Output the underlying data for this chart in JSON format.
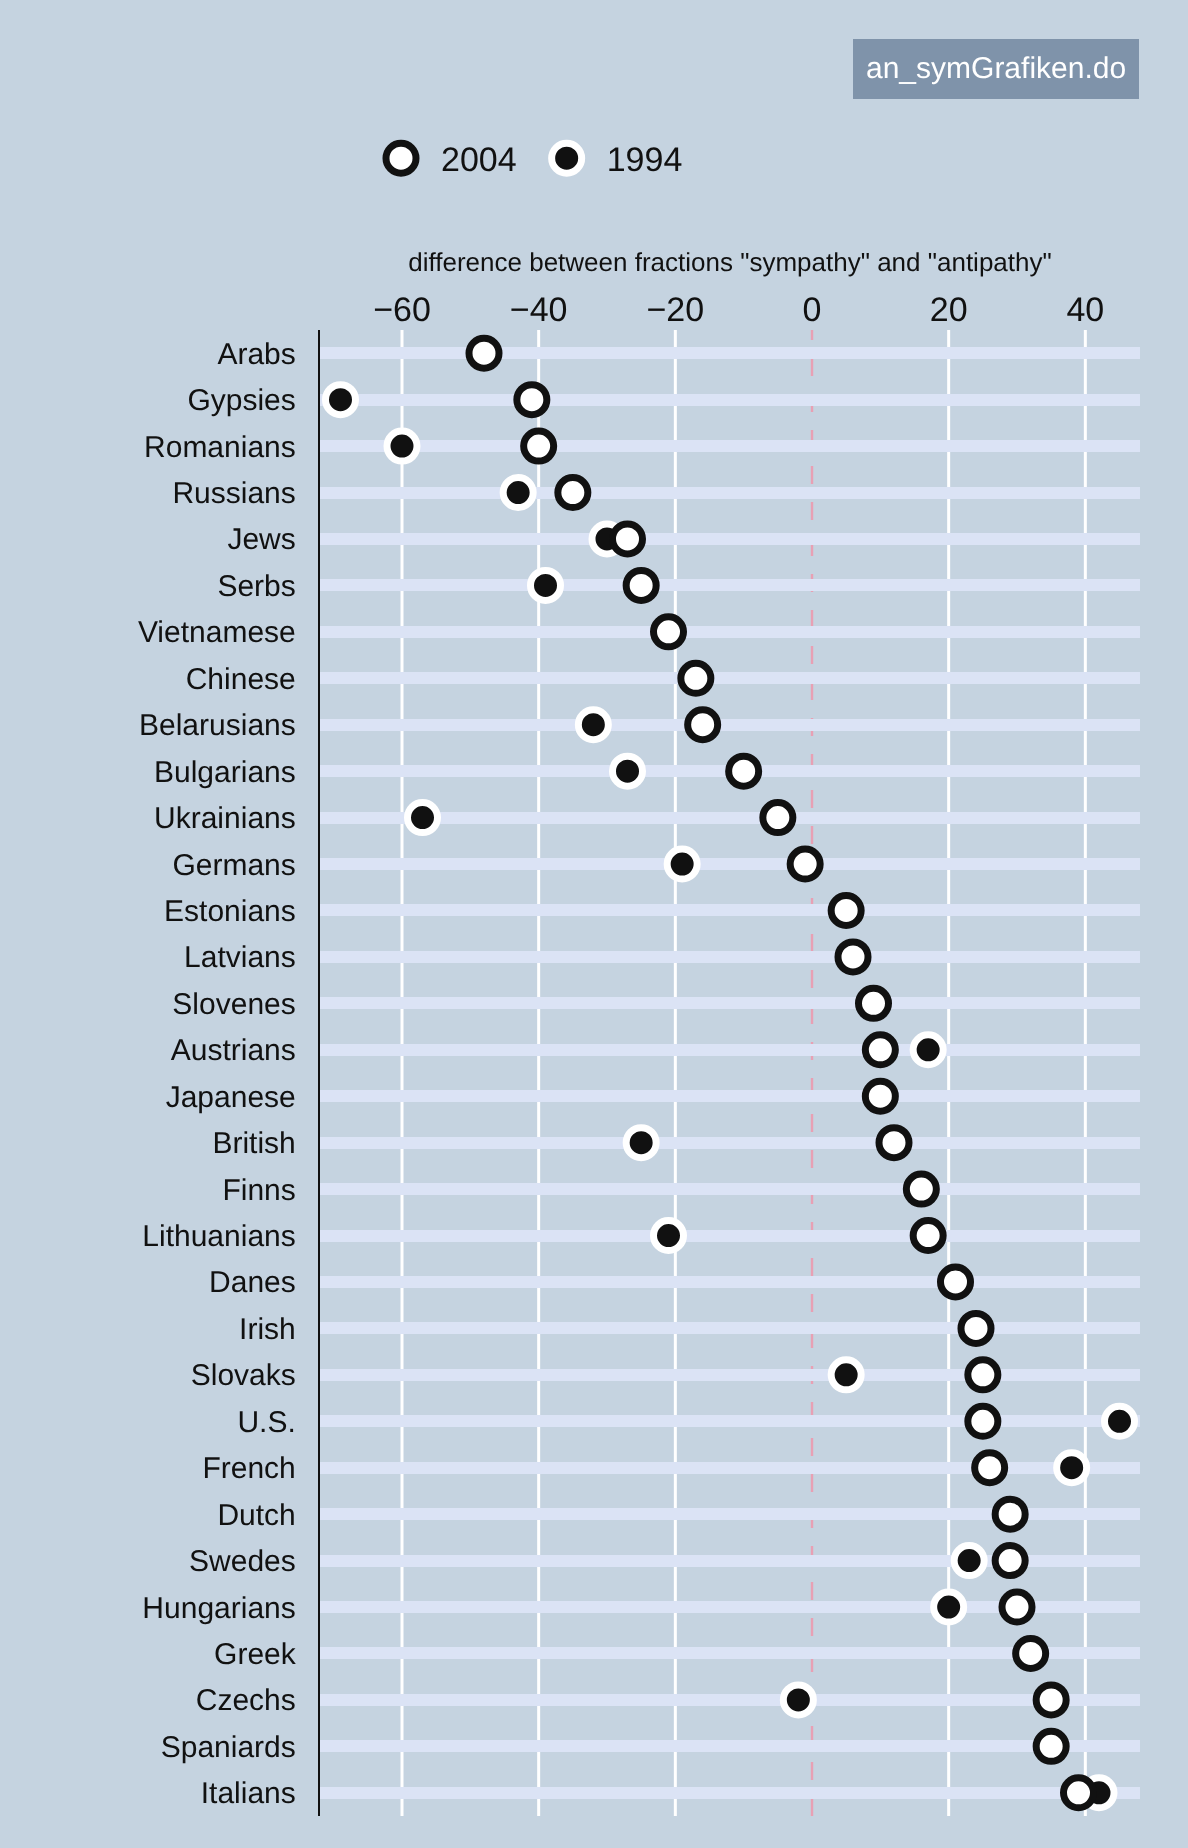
{
  "chart_data": {
    "type": "scatter",
    "xlabel": "difference between fractions \"sympathy\" and \"antipathy\"",
    "annotations": [
      "an_symGrafiken.do"
    ],
    "categories": [
      "Arabs",
      "Gypsies",
      "Romanians",
      "Russians",
      "Jews",
      "Serbs",
      "Vietnamese",
      "Chinese",
      "Belarusians",
      "Bulgarians",
      "Ukrainians",
      "Germans",
      "Estonians",
      "Latvians",
      "Slovenes",
      "Austrians",
      "Japanese",
      "British",
      "Finns",
      "Lithuanians",
      "Danes",
      "Irish",
      "Slovaks",
      "U.S.",
      "French",
      "Dutch",
      "Swedes",
      "Hungarians",
      "Greek",
      "Czechs",
      "Spaniards",
      "Italians"
    ],
    "series": [
      {
        "name": "2004",
        "color": "#ffffff",
        "values": [
          -48,
          -41,
          -40,
          -35,
          -27,
          -25,
          -21,
          -17,
          -16,
          -10,
          -5,
          -1,
          5,
          6,
          9,
          10,
          10,
          12,
          16,
          17,
          21,
          24,
          25,
          25,
          26,
          29,
          29,
          30,
          32,
          35,
          35,
          39
        ]
      },
      {
        "name": "1994",
        "color": "#111111",
        "values": [
          null,
          -69,
          -60,
          -43,
          -30,
          -39,
          null,
          null,
          -32,
          -27,
          -57,
          -19,
          null,
          null,
          null,
          17,
          null,
          -25,
          null,
          -21,
          null,
          null,
          5,
          45,
          38,
          null,
          23,
          20,
          null,
          -2,
          null,
          42
        ]
      }
    ],
    "xlim": [
      -72,
      48
    ],
    "xticks": [
      {
        "value": -60,
        "label": "−60"
      },
      {
        "value": -40,
        "label": "−40"
      },
      {
        "value": -20,
        "label": "−20"
      },
      {
        "value": 0,
        "label": "0"
      },
      {
        "value": 20,
        "label": "20"
      },
      {
        "value": 40,
        "label": "40"
      }
    ],
    "orientation": "horizontal",
    "ref_lines": [
      {
        "axis": "x",
        "value": 0,
        "color": "#e8a0b4",
        "line_style": "dashed"
      }
    ],
    "grid": true,
    "legend": "top",
    "marker": "circle"
  }
}
